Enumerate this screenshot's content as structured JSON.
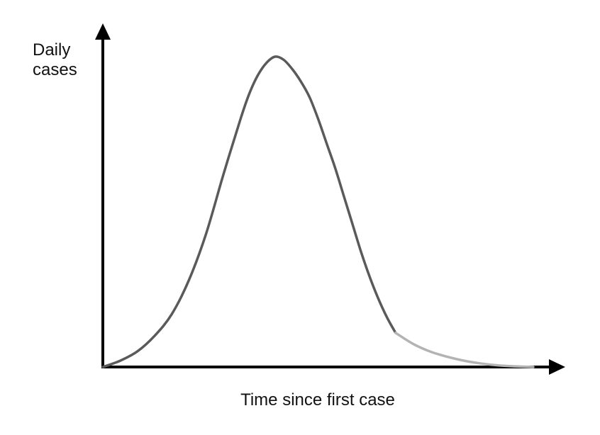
{
  "chart_data": {
    "type": "line",
    "title": "",
    "xlabel": "Time since first case",
    "ylabel": [
      "Daily",
      "cases"
    ],
    "xlim": [
      0,
      100
    ],
    "ylim": [
      0,
      100
    ],
    "grid": false,
    "colors": {
      "axis": "#000000",
      "curve_dark": "#5a5a5a",
      "curve_light": "#b3b3b3"
    },
    "series": [
      {
        "x": [
          0,
          4,
          8,
          12,
          16,
          20,
          24,
          28,
          32,
          34,
          36,
          38,
          40,
          42,
          44,
          46,
          48,
          50,
          52,
          54,
          56,
          58,
          60,
          62,
          64,
          66,
          68
        ],
        "y": [
          0,
          2,
          5,
          10,
          17,
          28,
          43,
          62,
          80,
          88,
          94,
          98,
          100,
          99,
          96,
          92,
          87,
          80,
          72,
          64,
          55,
          46,
          37,
          29,
          22,
          16,
          11
        ],
        "color": "#5a5a5a"
      },
      {
        "x": [
          68,
          72,
          76,
          80,
          84,
          88,
          92,
          96,
          100
        ],
        "y": [
          11,
          7.5,
          5,
          3.3,
          2,
          1.1,
          0.5,
          0.2,
          0
        ],
        "color": "#b3b3b3"
      }
    ]
  }
}
